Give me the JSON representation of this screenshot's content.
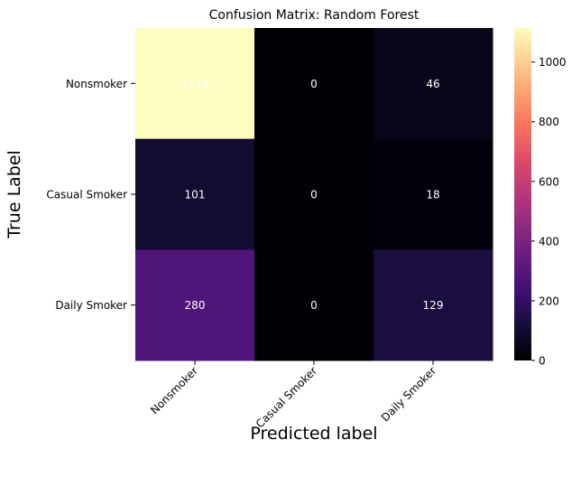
{
  "chart_data": {
    "type": "heatmap",
    "title": "Confusion Matrix: Random Forest",
    "xlabel": "Predicted label",
    "ylabel": "True Label",
    "x_categories": [
      "Nonsmoker",
      "Casual Smoker",
      "Daily Smoker"
    ],
    "y_categories": [
      "Nonsmoker",
      "Casual Smoker",
      "Daily Smoker"
    ],
    "values": [
      [
        1114,
        0,
        46
      ],
      [
        101,
        0,
        18
      ],
      [
        280,
        0,
        129
      ]
    ],
    "colorscale": "magma",
    "value_range": [
      0,
      1114
    ],
    "colorbar_ticks": [
      0,
      200,
      400,
      600,
      800,
      1000
    ],
    "colorbar_tick_labels": [
      "0",
      "200",
      "400",
      "600",
      "800",
      "1000"
    ],
    "annotation_color": "#ffffff"
  }
}
